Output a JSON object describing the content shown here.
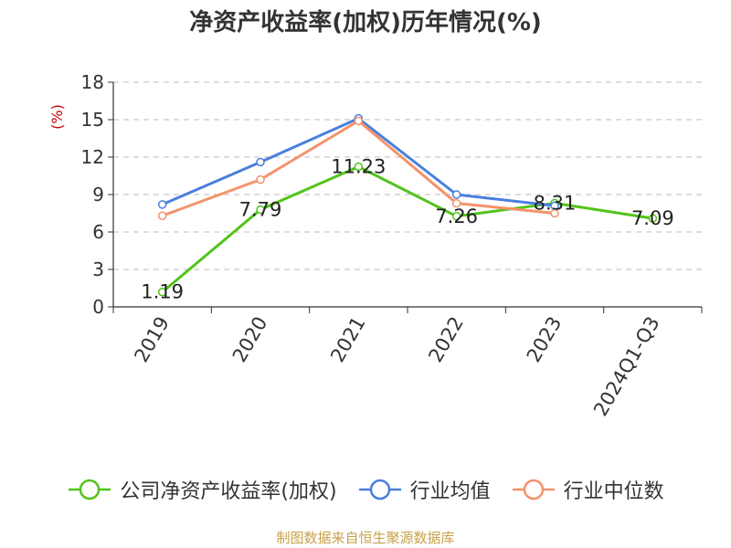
{
  "chart_data": {
    "type": "line",
    "title": "净资产收益率(加权)历年情况(%)",
    "ylabel": "(%)",
    "categories": [
      "2019",
      "2020",
      "2021",
      "2022",
      "2023",
      "2024Q1-Q3"
    ],
    "ylim": [
      0,
      18
    ],
    "yticks": [
      0,
      3,
      6,
      9,
      12,
      15,
      18
    ],
    "grid": true,
    "legend_position": "bottom",
    "series": [
      {
        "name": "公司净资产收益率(加权)",
        "color": "#52c41a",
        "values": [
          1.19,
          7.79,
          11.23,
          7.26,
          8.31,
          7.09
        ],
        "labels": true
      },
      {
        "name": "行业均值",
        "color": "#4a7fdc",
        "values": [
          8.2,
          11.6,
          15.1,
          9.0,
          8.1,
          null
        ],
        "labels": false
      },
      {
        "name": "行业中位数",
        "color": "#f6926a",
        "values": [
          7.3,
          10.2,
          14.9,
          8.3,
          7.5,
          null
        ],
        "labels": false
      }
    ]
  },
  "source": "制图数据来自恒生聚源数据库"
}
